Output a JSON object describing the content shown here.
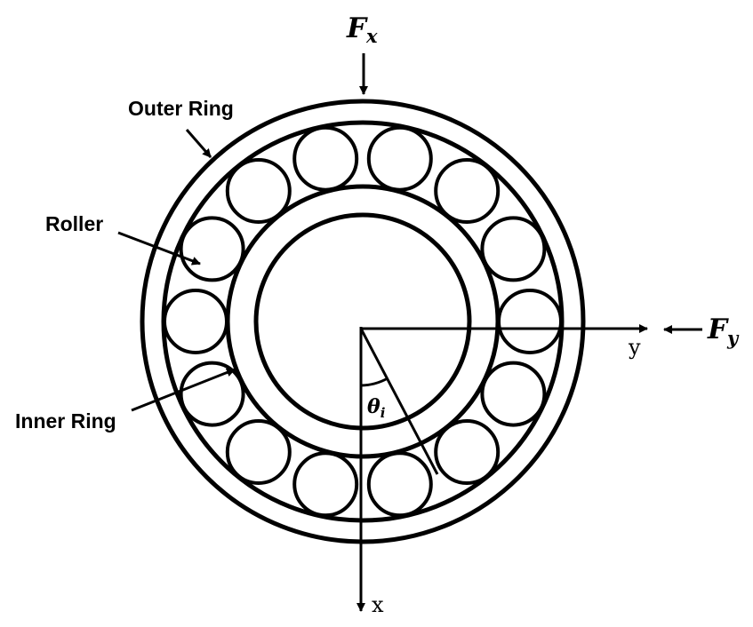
{
  "labels": {
    "outer_ring": "Outer Ring",
    "roller": "Roller",
    "inner_ring": "Inner Ring"
  },
  "axes": {
    "x": "x",
    "y": "y"
  },
  "forces": {
    "fx_main": "F",
    "fx_sub": "x",
    "fy_main": "F",
    "fy_sub": "y"
  },
  "angle": {
    "main": "θ",
    "sub": "i"
  },
  "roller_count": 14
}
